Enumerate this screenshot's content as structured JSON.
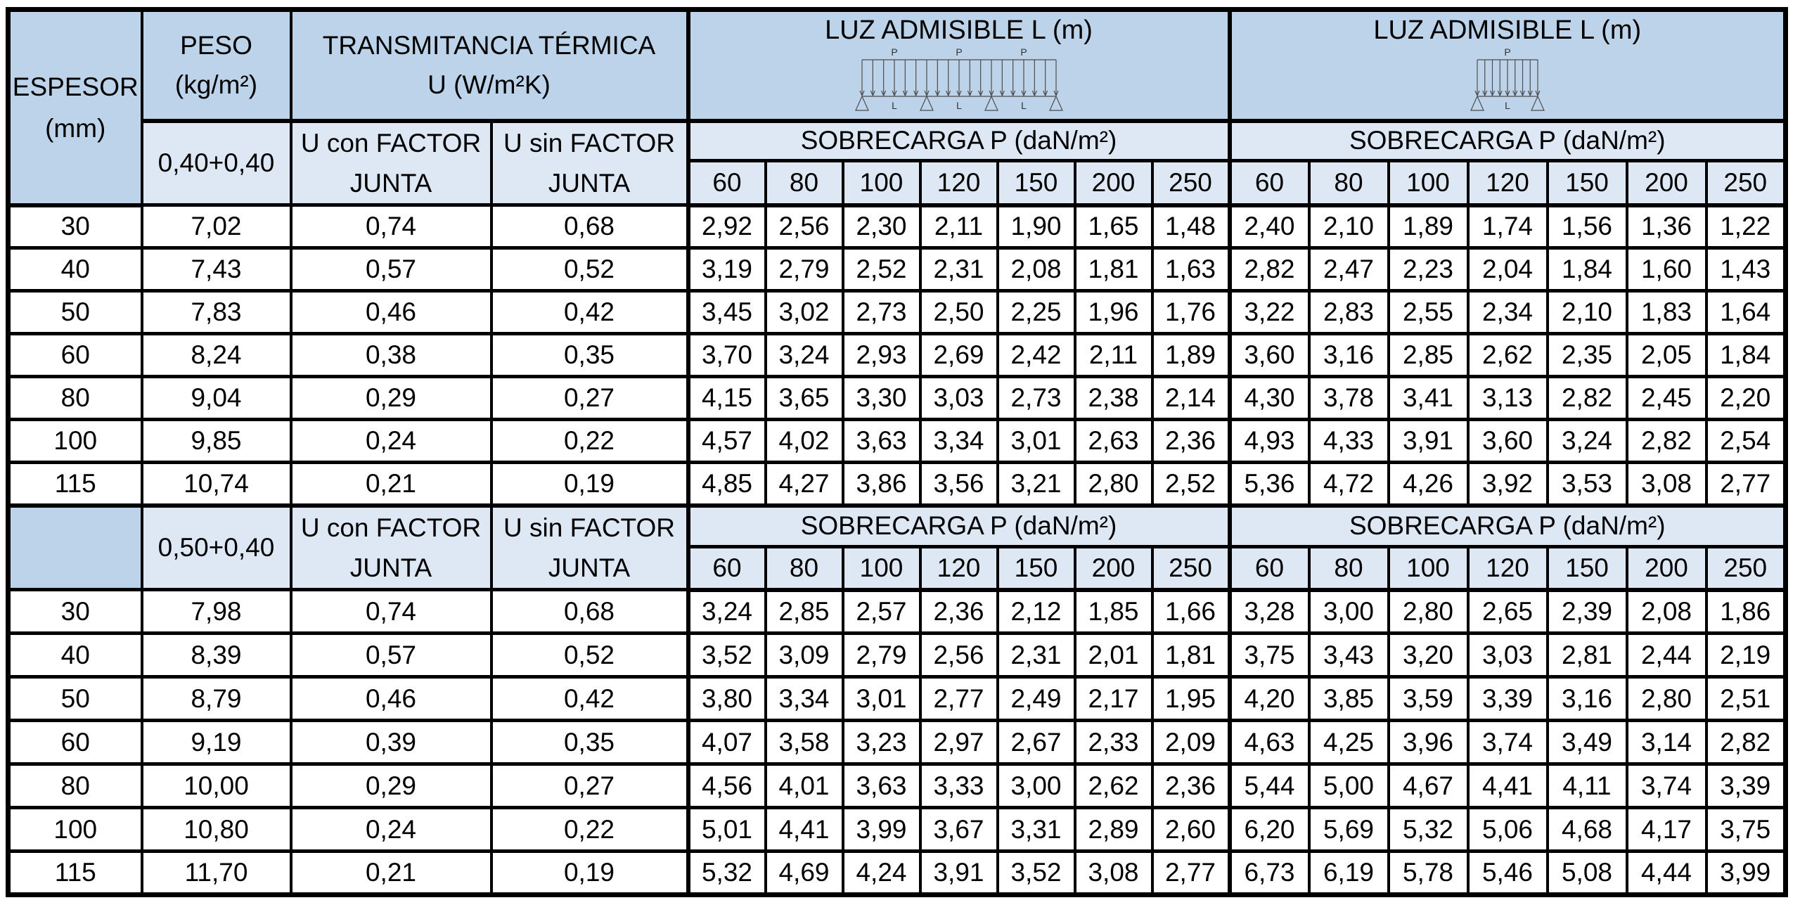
{
  "colors": {
    "header_dark_blue": "#bdd3ea",
    "header_light_blue": "#dde8f4",
    "border_black": "#000000",
    "body_white": "#ffffff",
    "diagram_gray": "#4d4d4d"
  },
  "header": {
    "espesor_line1": "ESPESOR",
    "espesor_line2": "(mm)",
    "peso_line1": "PESO",
    "peso_line2": "(kg/m²)",
    "transmitancia_line1": "TRANSMITANCIA TÉRMICA",
    "transmitancia_line2": "U (W/m²K)",
    "luz_title_multi": "LUZ ADMISIBLE L (m)",
    "luz_title_single": "LUZ ADMISIBLE L (m)",
    "sobrecarga_title": "SOBRECARGA P (daN/m²)",
    "load_values": [
      "60",
      "80",
      "100",
      "120",
      "150",
      "200",
      "250"
    ],
    "diagram": {
      "load_label": "P",
      "span_label": "L"
    }
  },
  "blocks": [
    {
      "sheet_combo": "0,40+0,40",
      "u_con_line1": "U con FACTOR",
      "u_con_line2": "JUNTA",
      "u_sin_line1": "U sin FACTOR",
      "u_sin_line2": "JUNTA",
      "rows": [
        {
          "espesor": "30",
          "peso": "7,02",
          "u_con": "0,74",
          "u_sin": "0,68",
          "luz_multi": [
            "2,92",
            "2,56",
            "2,30",
            "2,11",
            "1,90",
            "1,65",
            "1,48"
          ],
          "luz_single": [
            "2,40",
            "2,10",
            "1,89",
            "1,74",
            "1,56",
            "1,36",
            "1,22"
          ]
        },
        {
          "espesor": "40",
          "peso": "7,43",
          "u_con": "0,57",
          "u_sin": "0,52",
          "luz_multi": [
            "3,19",
            "2,79",
            "2,52",
            "2,31",
            "2,08",
            "1,81",
            "1,63"
          ],
          "luz_single": [
            "2,82",
            "2,47",
            "2,23",
            "2,04",
            "1,84",
            "1,60",
            "1,43"
          ]
        },
        {
          "espesor": "50",
          "peso": "7,83",
          "u_con": "0,46",
          "u_sin": "0,42",
          "luz_multi": [
            "3,45",
            "3,02",
            "2,73",
            "2,50",
            "2,25",
            "1,96",
            "1,76"
          ],
          "luz_single": [
            "3,22",
            "2,83",
            "2,55",
            "2,34",
            "2,10",
            "1,83",
            "1,64"
          ]
        },
        {
          "espesor": "60",
          "peso": "8,24",
          "u_con": "0,38",
          "u_sin": "0,35",
          "luz_multi": [
            "3,70",
            "3,24",
            "2,93",
            "2,69",
            "2,42",
            "2,11",
            "1,89"
          ],
          "luz_single": [
            "3,60",
            "3,16",
            "2,85",
            "2,62",
            "2,35",
            "2,05",
            "1,84"
          ]
        },
        {
          "espesor": "80",
          "peso": "9,04",
          "u_con": "0,29",
          "u_sin": "0,27",
          "luz_multi": [
            "4,15",
            "3,65",
            "3,30",
            "3,03",
            "2,73",
            "2,38",
            "2,14"
          ],
          "luz_single": [
            "4,30",
            "3,78",
            "3,41",
            "3,13",
            "2,82",
            "2,45",
            "2,20"
          ]
        },
        {
          "espesor": "100",
          "peso": "9,85",
          "u_con": "0,24",
          "u_sin": "0,22",
          "luz_multi": [
            "4,57",
            "4,02",
            "3,63",
            "3,34",
            "3,01",
            "2,63",
            "2,36"
          ],
          "luz_single": [
            "4,93",
            "4,33",
            "3,91",
            "3,60",
            "3,24",
            "2,82",
            "2,54"
          ]
        },
        {
          "espesor": "115",
          "peso": "10,74",
          "u_con": "0,21",
          "u_sin": "0,19",
          "luz_multi": [
            "4,85",
            "4,27",
            "3,86",
            "3,56",
            "3,21",
            "2,80",
            "2,52"
          ],
          "luz_single": [
            "5,36",
            "4,72",
            "4,26",
            "3,92",
            "3,53",
            "3,08",
            "2,77"
          ]
        }
      ]
    },
    {
      "sheet_combo": "0,50+0,40",
      "u_con_line1": "U con FACTOR",
      "u_con_line2": "JUNTA",
      "u_sin_line1": "U sin FACTOR",
      "u_sin_line2": "JUNTA",
      "rows": [
        {
          "espesor": "30",
          "peso": "7,98",
          "u_con": "0,74",
          "u_sin": "0,68",
          "luz_multi": [
            "3,24",
            "2,85",
            "2,57",
            "2,36",
            "2,12",
            "1,85",
            "1,66"
          ],
          "luz_single": [
            "3,28",
            "3,00",
            "2,80",
            "2,65",
            "2,39",
            "2,08",
            "1,86"
          ]
        },
        {
          "espesor": "40",
          "peso": "8,39",
          "u_con": "0,57",
          "u_sin": "0,52",
          "luz_multi": [
            "3,52",
            "3,09",
            "2,79",
            "2,56",
            "2,31",
            "2,01",
            "1,81"
          ],
          "luz_single": [
            "3,75",
            "3,43",
            "3,20",
            "3,03",
            "2,81",
            "2,44",
            "2,19"
          ]
        },
        {
          "espesor": "50",
          "peso": "8,79",
          "u_con": "0,46",
          "u_sin": "0,42",
          "luz_multi": [
            "3,80",
            "3,34",
            "3,01",
            "2,77",
            "2,49",
            "2,17",
            "1,95"
          ],
          "luz_single": [
            "4,20",
            "3,85",
            "3,59",
            "3,39",
            "3,16",
            "2,80",
            "2,51"
          ]
        },
        {
          "espesor": "60",
          "peso": "9,19",
          "u_con": "0,39",
          "u_sin": "0,35",
          "luz_multi": [
            "4,07",
            "3,58",
            "3,23",
            "2,97",
            "2,67",
            "2,33",
            "2,09"
          ],
          "luz_single": [
            "4,63",
            "4,25",
            "3,96",
            "3,74",
            "3,49",
            "3,14",
            "2,82"
          ]
        },
        {
          "espesor": "80",
          "peso": "10,00",
          "u_con": "0,29",
          "u_sin": "0,27",
          "luz_multi": [
            "4,56",
            "4,01",
            "3,63",
            "3,33",
            "3,00",
            "2,62",
            "2,36"
          ],
          "luz_single": [
            "5,44",
            "5,00",
            "4,67",
            "4,41",
            "4,11",
            "3,74",
            "3,39"
          ]
        },
        {
          "espesor": "100",
          "peso": "10,80",
          "u_con": "0,24",
          "u_sin": "0,22",
          "luz_multi": [
            "5,01",
            "4,41",
            "3,99",
            "3,67",
            "3,31",
            "2,89",
            "2,60"
          ],
          "luz_single": [
            "6,20",
            "5,69",
            "5,32",
            "5,06",
            "4,68",
            "4,17",
            "3,75"
          ]
        },
        {
          "espesor": "115",
          "peso": "11,70",
          "u_con": "0,21",
          "u_sin": "0,19",
          "luz_multi": [
            "5,32",
            "4,69",
            "4,24",
            "3,91",
            "3,52",
            "3,08",
            "2,77"
          ],
          "luz_single": [
            "6,73",
            "6,19",
            "5,78",
            "5,46",
            "5,08",
            "4,44",
            "3,99"
          ]
        }
      ]
    }
  ]
}
